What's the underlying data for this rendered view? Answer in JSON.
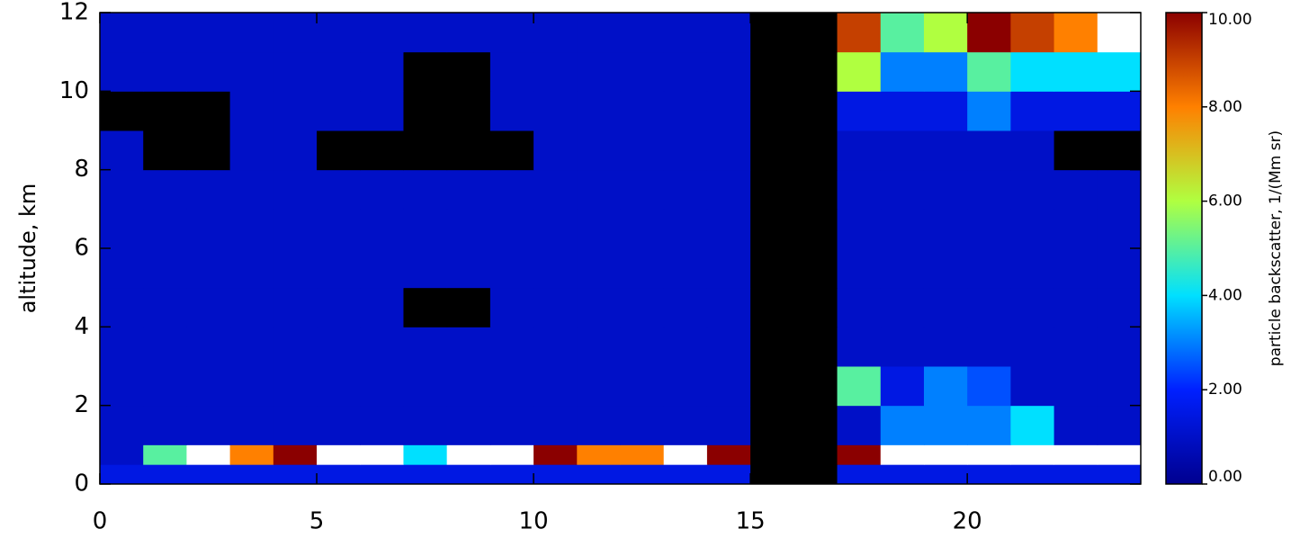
{
  "chart_data": {
    "type": "heatmap",
    "y_label": "altitude, km",
    "colorbar_label": "particle backscatter, 1/(Mm sr)",
    "xlim": [
      0,
      24
    ],
    "ylim": [
      0,
      12
    ],
    "xticks": [
      0,
      5,
      10,
      15,
      20
    ],
    "yticks": [
      0,
      2,
      4,
      6,
      8,
      10,
      12
    ],
    "x_edges": [
      0,
      1,
      2,
      3,
      4,
      5,
      6,
      7,
      8,
      9,
      10,
      11,
      12,
      13,
      14,
      15,
      16,
      17,
      18,
      19,
      20,
      21,
      22,
      23,
      24
    ],
    "y_edges": [
      0,
      0.5,
      1,
      2,
      3,
      4,
      5,
      6,
      7,
      8,
      9,
      10,
      11,
      12
    ],
    "values": [
      [
        1.5,
        1.5,
        1.5,
        1.5,
        1.5,
        1.5,
        1.5,
        1.5,
        1.5,
        1.5,
        1.5,
        1.5,
        1.5,
        1.5,
        1.5,
        null,
        null,
        1.5,
        1.5,
        1.5,
        1.5,
        1.5,
        1.5,
        1.5
      ],
      [
        1,
        5,
        12,
        8,
        10,
        12,
        12,
        4,
        12,
        12,
        10,
        8,
        8,
        12,
        10,
        null,
        null,
        10,
        12,
        12,
        12,
        12,
        12,
        12
      ],
      [
        1,
        1,
        1,
        1,
        1,
        1,
        1,
        1,
        1,
        1,
        1,
        1,
        1,
        1,
        1,
        null,
        null,
        1,
        3,
        3,
        3,
        4,
        1,
        1
      ],
      [
        1,
        1,
        1,
        1,
        1,
        1,
        1,
        1,
        1,
        1,
        1,
        1,
        1,
        1,
        1,
        null,
        null,
        5,
        1.5,
        3,
        2.5,
        1,
        1,
        1
      ],
      [
        1,
        1,
        1,
        1,
        1,
        1,
        1,
        1,
        1,
        1,
        1,
        1,
        1,
        1,
        1,
        null,
        null,
        1,
        1,
        1,
        1,
        1,
        1,
        1
      ],
      [
        1,
        1,
        1,
        1,
        1,
        1,
        1,
        null,
        null,
        1,
        1,
        1,
        1,
        1,
        1,
        null,
        null,
        1,
        1,
        1,
        1,
        1,
        1,
        1
      ],
      [
        1,
        1,
        1,
        1,
        1,
        1,
        1,
        1,
        1,
        1,
        1,
        1,
        1,
        1,
        1,
        null,
        null,
        1,
        1,
        1,
        1,
        1,
        1,
        1
      ],
      [
        1,
        1,
        1,
        1,
        1,
        1,
        1,
        1,
        1,
        1,
        1,
        1,
        1,
        1,
        1,
        null,
        null,
        1,
        1,
        1,
        1,
        1,
        1,
        1
      ],
      [
        1,
        1,
        1,
        1,
        1,
        1,
        1,
        1,
        1,
        1,
        1,
        1,
        1,
        1,
        1,
        null,
        null,
        1,
        1,
        1,
        1,
        1,
        1,
        1
      ],
      [
        1,
        null,
        null,
        1,
        1,
        null,
        null,
        null,
        null,
        null,
        1,
        1,
        1,
        1,
        1,
        null,
        null,
        1,
        1,
        1,
        1,
        1,
        null,
        null
      ],
      [
        null,
        null,
        null,
        1,
        1,
        1,
        1,
        null,
        null,
        1,
        1,
        1,
        1,
        1,
        1,
        null,
        null,
        1.5,
        1.5,
        1.5,
        3,
        1.5,
        1.5,
        1.5
      ],
      [
        1,
        1,
        1,
        1,
        1,
        1,
        1,
        null,
        null,
        1,
        1,
        1,
        1,
        1,
        1,
        null,
        null,
        6,
        3,
        3,
        5,
        4,
        4,
        4
      ],
      [
        1,
        1,
        1,
        1,
        1,
        1,
        1,
        1,
        1,
        1,
        1,
        1,
        1,
        1,
        1,
        null,
        null,
        9,
        5,
        6,
        10,
        9,
        8,
        11
      ]
    ],
    "zlim": [
      0,
      10
    ],
    "zticks": [
      {
        "value": 0,
        "label": "0.00"
      },
      {
        "value": 2,
        "label": "2.00"
      },
      {
        "value": 4,
        "label": "4.00"
      },
      {
        "value": 6,
        "label": "6.00"
      },
      {
        "value": 8,
        "label": "8.00"
      },
      {
        "value": 10,
        "label": "10.00"
      }
    ],
    "colorscale": [
      "#00008f",
      "#0020ff",
      "#00e0ff",
      "#b0ff40",
      "#ff8000",
      "#8b0000"
    ],
    "over_color": "#ffffff",
    "null_color": "#000000"
  }
}
